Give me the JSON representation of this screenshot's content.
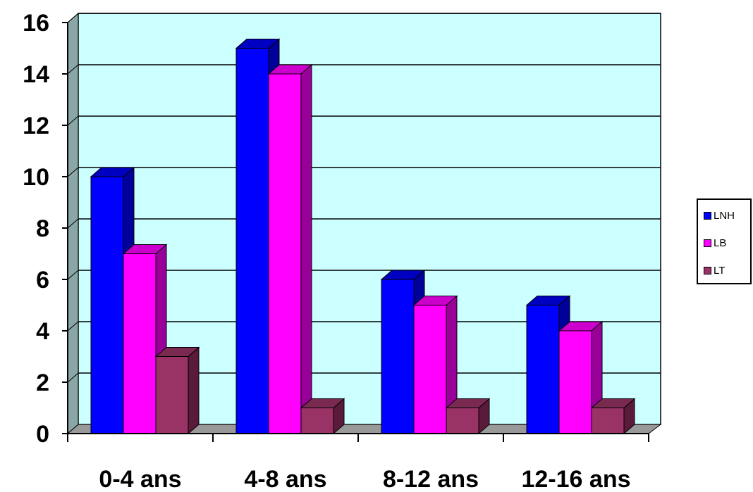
{
  "chart_data": {
    "type": "bar",
    "categories": [
      "0-4 ans",
      "4-8 ans",
      "8-12 ans",
      "12-16 ans"
    ],
    "series": [
      {
        "name": "LNH",
        "values": [
          10,
          15,
          6,
          5
        ],
        "color": "#0000ff"
      },
      {
        "name": "LB",
        "values": [
          7,
          14,
          5,
          4
        ],
        "color": "#ff00ff"
      },
      {
        "name": "LT",
        "values": [
          3,
          1,
          1,
          1
        ],
        "color": "#993366"
      }
    ],
    "ylim": [
      0,
      16
    ],
    "yticks": [
      "0",
      "2",
      "4",
      "6",
      "8",
      "10",
      "12",
      "14",
      "16"
    ],
    "grid": true,
    "legend_position": "right",
    "plot_background": "#ccffff",
    "side_colors": {
      "LNH": "#00009a",
      "LB": "#99009a",
      "LT": "#5a1a3a"
    },
    "top_colors": {
      "LNH": "#0000c0",
      "LB": "#cc00cc",
      "LT": "#7a2a50"
    },
    "floor_color": "#999999",
    "wall_color": "#8aa6a6"
  }
}
